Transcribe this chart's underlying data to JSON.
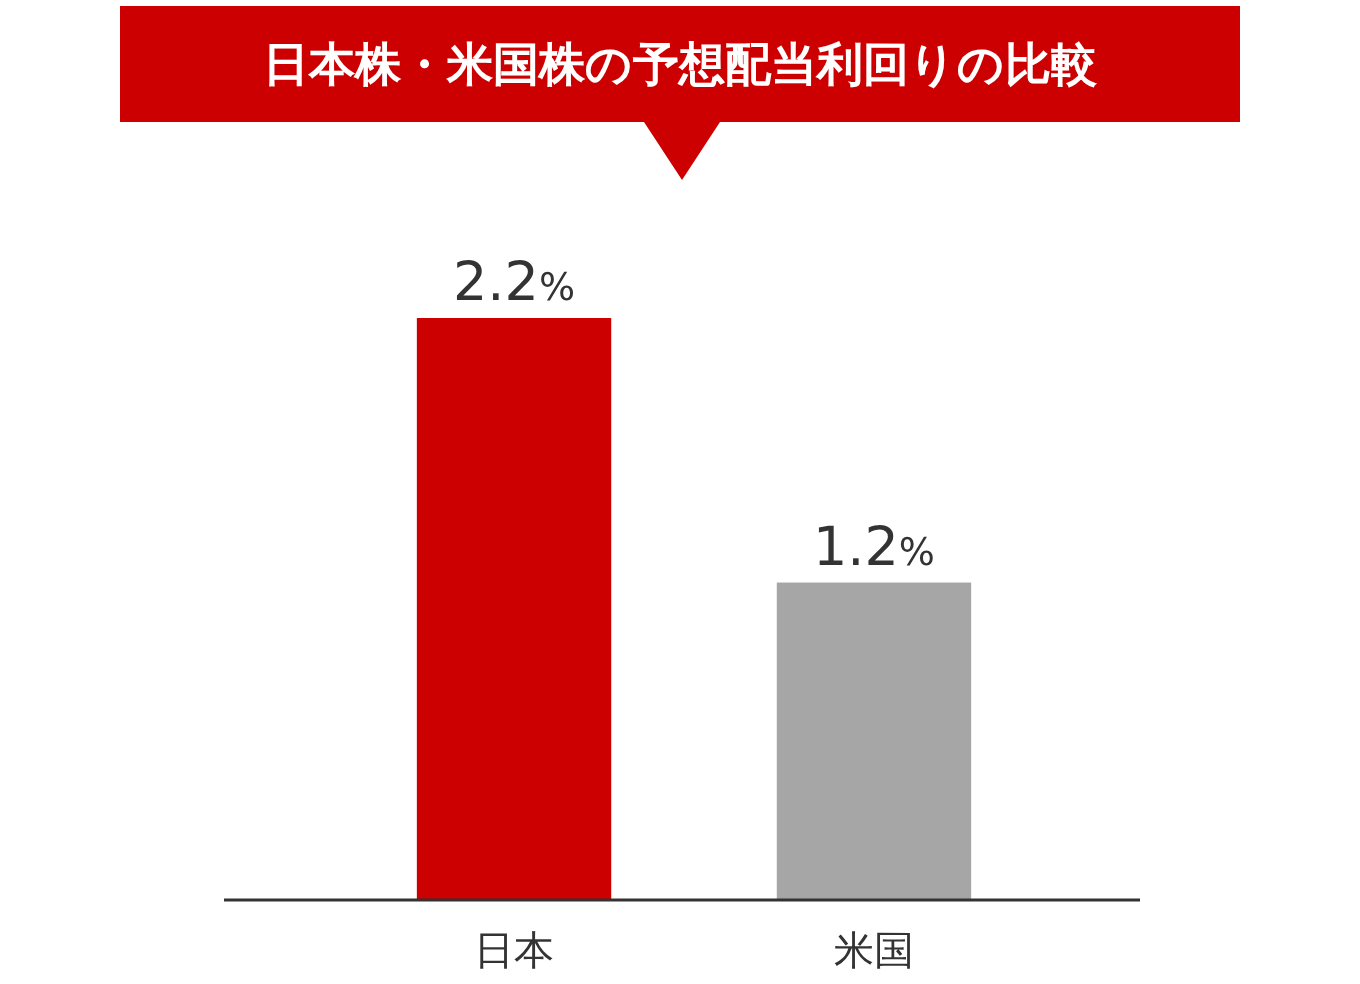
{
  "chart_data": {
    "type": "bar",
    "title": "日本株・米国株の予想配当利回りの比較",
    "categories": [
      "日本",
      "米国"
    ],
    "values": [
      2.2,
      1.2
    ],
    "colors": [
      "#cc0000",
      "#a6a6a6"
    ],
    "value_labels": [
      "2.2%",
      "1.2%"
    ]
  }
}
